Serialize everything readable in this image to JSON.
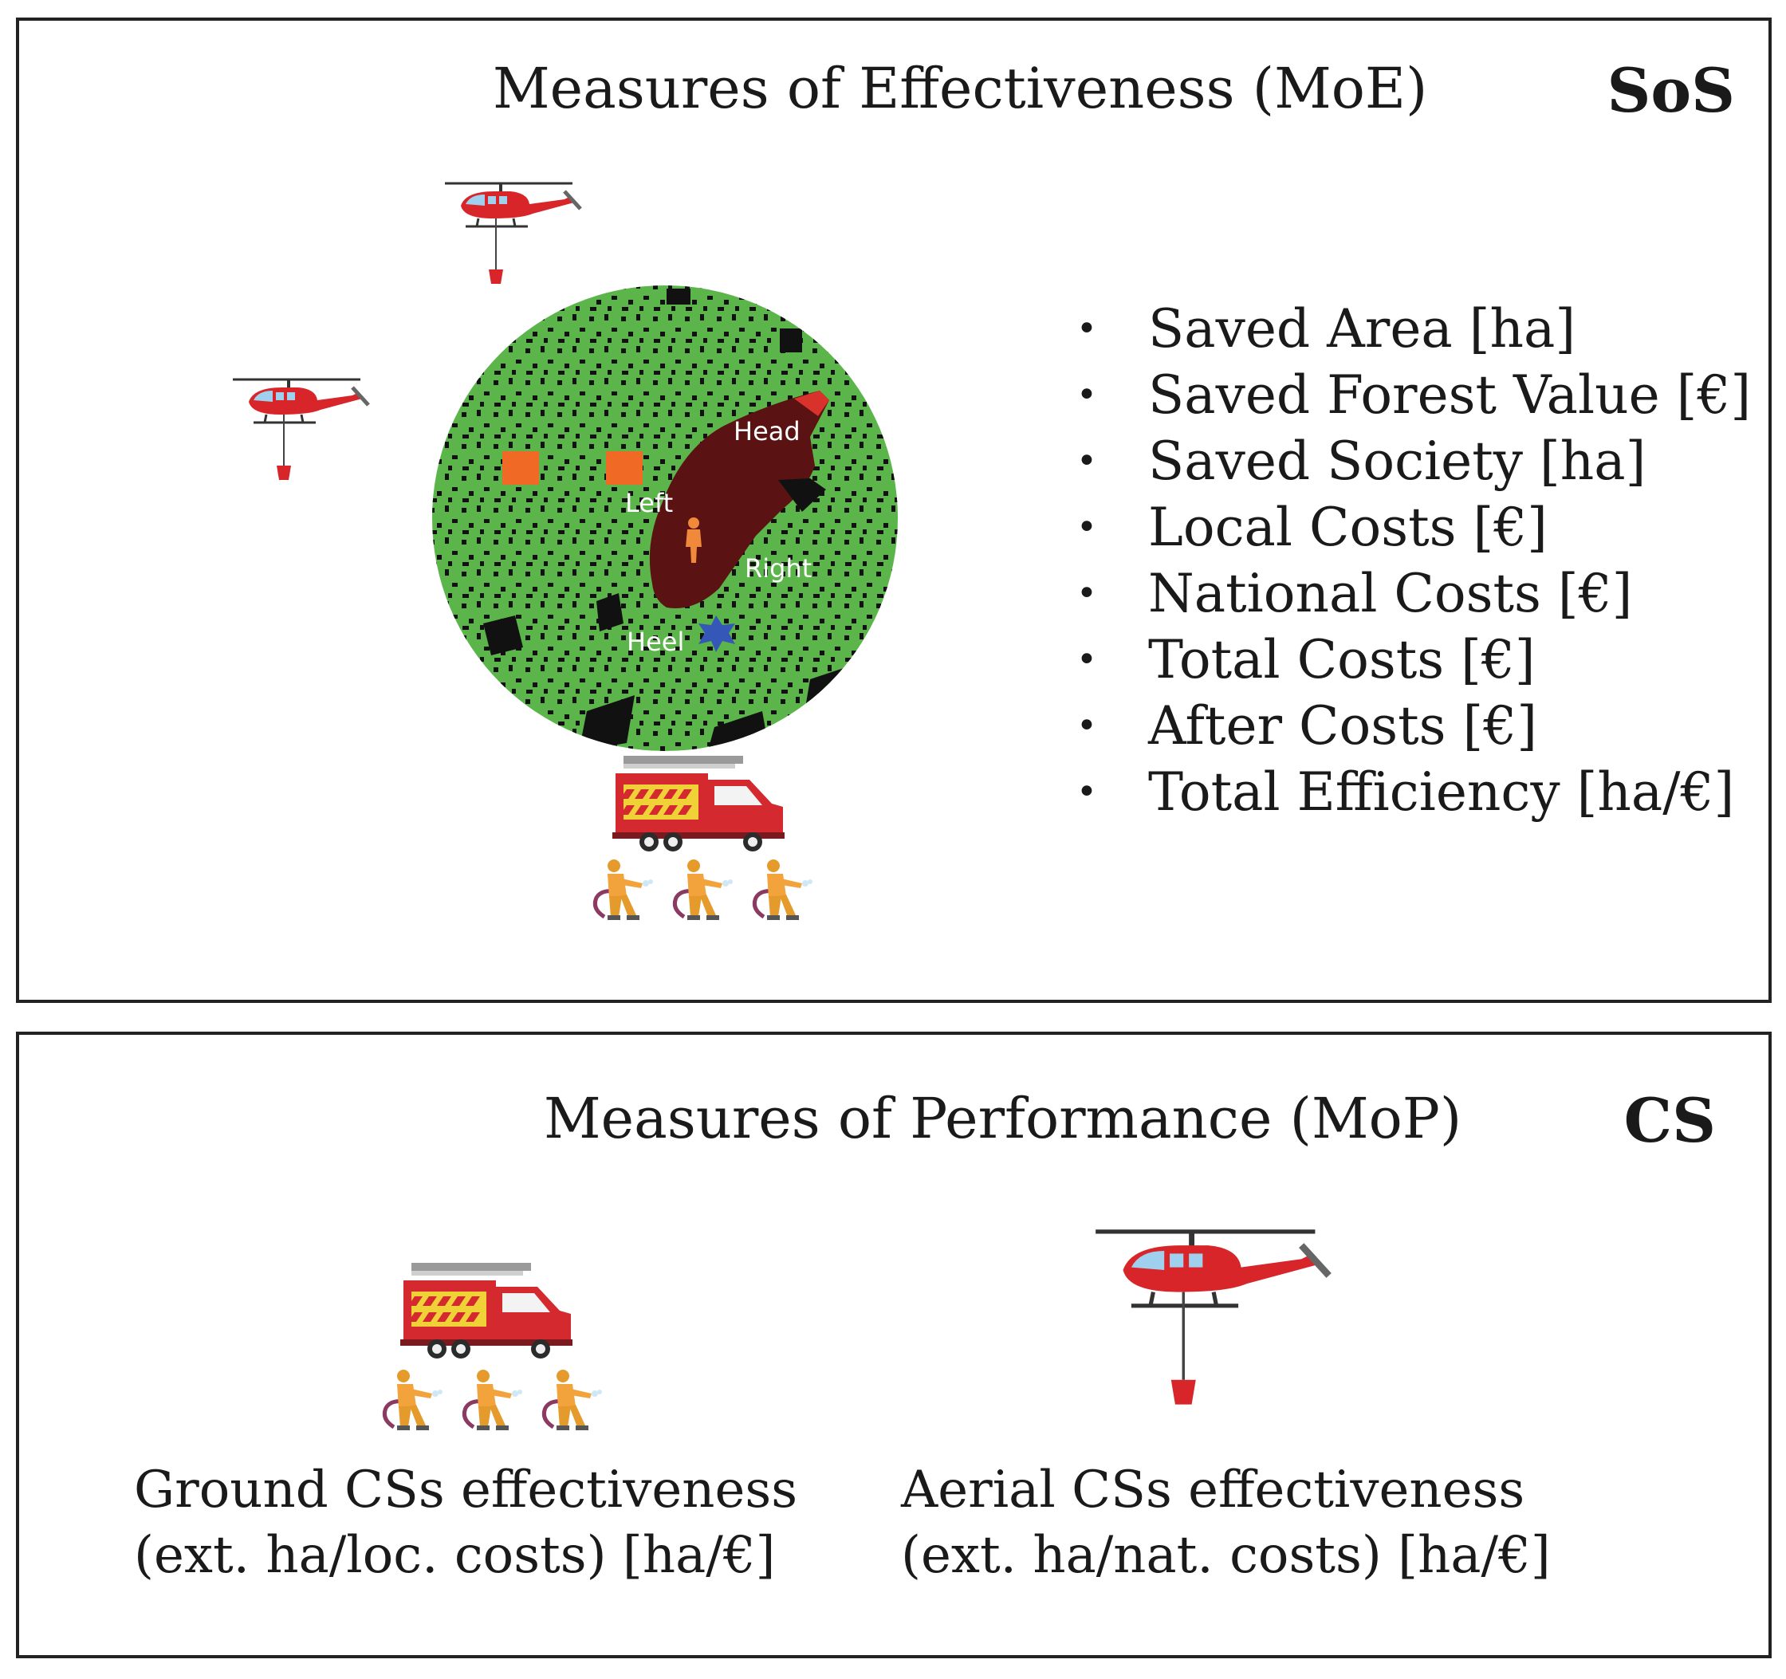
{
  "sos_panel": {
    "title": "Measures of Effectiveness (MoE)",
    "tag": "SoS",
    "map_labels": {
      "head": "Head",
      "left": "Left",
      "right": "Right",
      "heel": "Heel"
    },
    "moe_items": [
      "Saved Area [ha]",
      "Saved Forest Value [€]",
      "Saved Society [ha]",
      "Local Costs [€]",
      "National Costs [€]",
      "Total Costs [€]",
      "After Costs [€]",
      "Total Efficiency [ha/€]"
    ],
    "bullet": "•"
  },
  "cs_panel": {
    "title": "Measures of Performance (MoP)",
    "tag": "CS",
    "ground": {
      "line1": "Ground CSs effectiveness",
      "line2": "(ext. ha/loc. costs) [ha/€]"
    },
    "aerial": {
      "line1": "Aerial CSs effectiveness",
      "line2": "(ext. ha/nat. costs) [ha/€]"
    }
  },
  "icons": {
    "helicopter": "helicopter-icon",
    "fire_truck": "fire-truck-icon",
    "firefighter": "firefighter-icon",
    "fire_map": "fire-spread-map",
    "person": "person-icon",
    "ignition": "ignition-star-icon"
  },
  "colors": {
    "forest_green": "#5bb54a",
    "burned_area": "#5a1212",
    "fire_front": "#d9312b",
    "helicopter_red": "#d8252a",
    "truck_red": "#d42a2f",
    "firefighter_orange": "#f2a33c",
    "marker_orange": "#f06a26",
    "ignition_blue": "#3557b8"
  }
}
